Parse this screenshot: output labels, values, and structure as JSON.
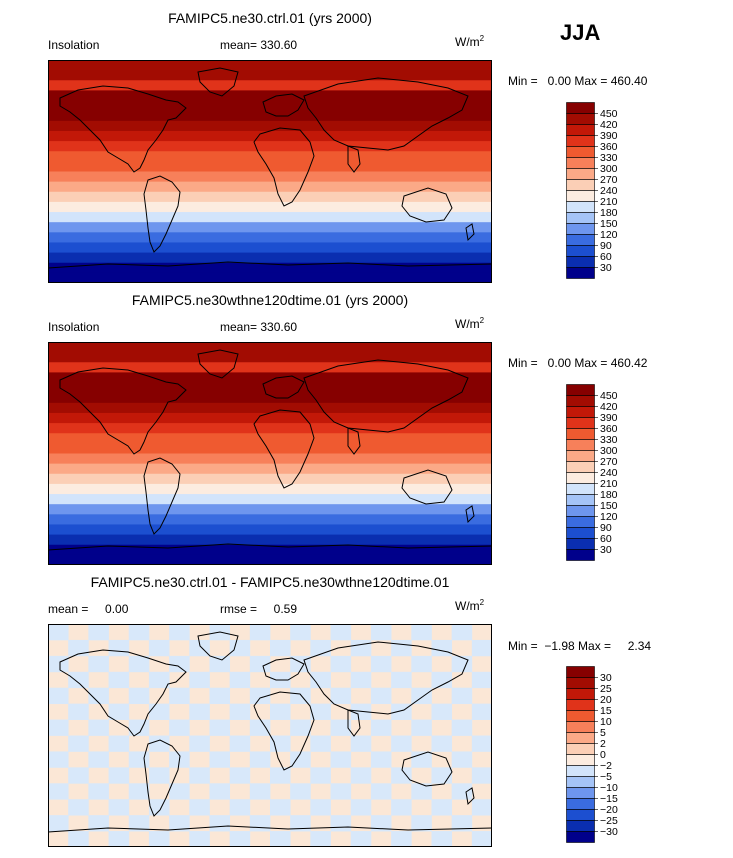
{
  "season": "JJA",
  "colors": {
    "abs_scale": [
      "#00008b",
      "#0a2eb0",
      "#1c4fd0",
      "#3a6ce0",
      "#6e96ee",
      "#a5c4f7",
      "#d2e4fb",
      "#fcece0",
      "#fbcfb6",
      "#fba987",
      "#f7805a",
      "#ef5a30",
      "#e0331a",
      "#c21808",
      "#a20c02",
      "#860000"
    ],
    "diff_scale": [
      "#00008b",
      "#0a2eb0",
      "#1c4fd0",
      "#3a6ce0",
      "#6e96ee",
      "#a5c4f7",
      "#d2e4fb",
      "#fcece0",
      "#fbcfb6",
      "#fba987",
      "#f7805a",
      "#ef5a30",
      "#e0331a",
      "#c21808",
      "#a20c02",
      "#860000"
    ]
  },
  "chart_data": [
    {
      "type": "heatmap",
      "title": "FAMIPC5.ne30.ctrl.01 (yrs 2000)",
      "left_label": "Insolation",
      "mean_text": "mean= 330.60",
      "units": "W/m",
      "units_exp": "2",
      "min_text": "Min =   0.00 Max = 460.40",
      "colorbar_levels": [
        "450",
        "420",
        "390",
        "360",
        "330",
        "300",
        "270",
        "240",
        "210",
        "180",
        "150",
        "120",
        "90",
        "60",
        "30"
      ],
      "zonal_profile_top_to_bottom": [
        420,
        420,
        360,
        450,
        450,
        450,
        420,
        390,
        360,
        330,
        330,
        300,
        270,
        240,
        210,
        180,
        120,
        90,
        60,
        30,
        0,
        0
      ]
    },
    {
      "type": "heatmap",
      "title": "FAMIPC5.ne30wthne120dtime.01 (yrs 2000)",
      "left_label": "Insolation",
      "mean_text": "mean= 330.60",
      "units": "W/m",
      "units_exp": "2",
      "min_text": "Min =   0.00 Max = 460.42",
      "colorbar_levels": [
        "450",
        "420",
        "390",
        "360",
        "330",
        "300",
        "270",
        "240",
        "210",
        "180",
        "150",
        "120",
        "90",
        "60",
        "30"
      ],
      "zonal_profile_top_to_bottom": [
        420,
        420,
        360,
        450,
        450,
        450,
        420,
        390,
        360,
        330,
        330,
        300,
        270,
        240,
        210,
        180,
        120,
        90,
        60,
        30,
        0,
        0
      ]
    },
    {
      "type": "heatmap",
      "title": "FAMIPC5.ne30.ctrl.01 - FAMIPC5.ne30wthne120dtime.01",
      "left_label": "mean =     0.00",
      "mean_text": "rmse =     0.59",
      "units": "W/m",
      "units_exp": "2",
      "min_text": "Min =  −1.98 Max =     2.34",
      "colorbar_levels": [
        "30",
        "25",
        "20",
        "15",
        "10",
        "5",
        "2",
        "0",
        "−2",
        "−5",
        "−10",
        "−15",
        "−20",
        "−25",
        "−30"
      ]
    }
  ]
}
